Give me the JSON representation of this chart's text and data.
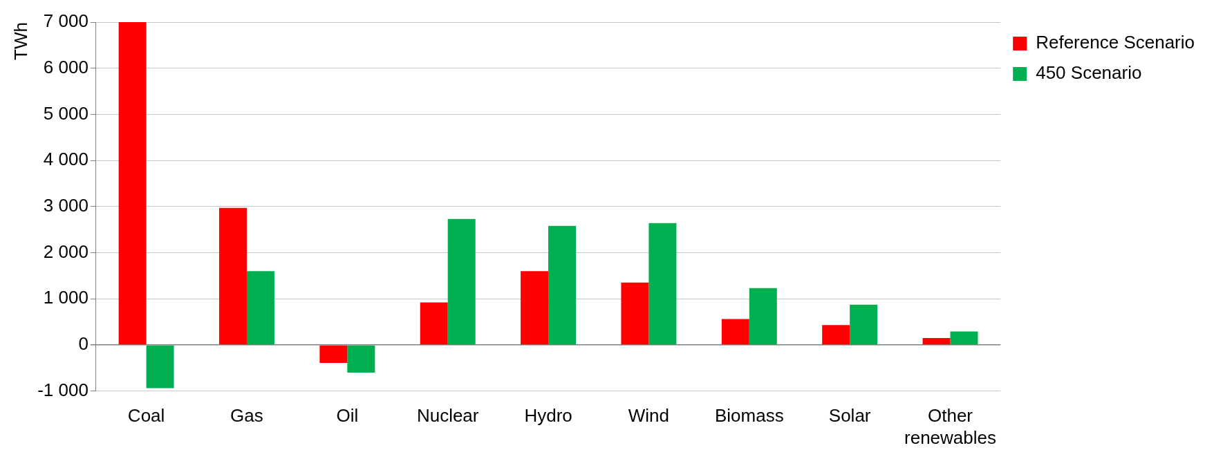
{
  "chart_data": {
    "type": "bar",
    "ylabel": "TWh",
    "categories": [
      "Coal",
      "Gas",
      "Oil",
      "Nuclear",
      "Hydro",
      "Wind",
      "Biomass",
      "Solar",
      "Other renewables"
    ],
    "series": [
      {
        "name": "Reference Scenario",
        "color": "#ff0000",
        "values": [
          7000,
          2970,
          -390,
          920,
          1600,
          1350,
          560,
          430,
          150
        ]
      },
      {
        "name": "450 Scenario",
        "color": "#00b050",
        "values": [
          -940,
          1600,
          -600,
          2730,
          2580,
          2640,
          1230,
          870,
          290
        ]
      }
    ],
    "ylim": [
      -1000,
      7000
    ],
    "yticks": [
      {
        "value": -1000,
        "label": "-1 000"
      },
      0,
      {
        "value": 1000,
        "label": "1 000"
      },
      {
        "value": 2000,
        "label": "2 000"
      },
      {
        "value": 3000,
        "label": "3 000"
      },
      {
        "value": 4000,
        "label": "4 000"
      },
      {
        "value": 5000,
        "label": "5 000"
      },
      {
        "value": 6000,
        "label": "6 000"
      },
      {
        "value": 7000,
        "label": "7 000"
      }
    ],
    "grid": "y",
    "legend": "top right"
  }
}
